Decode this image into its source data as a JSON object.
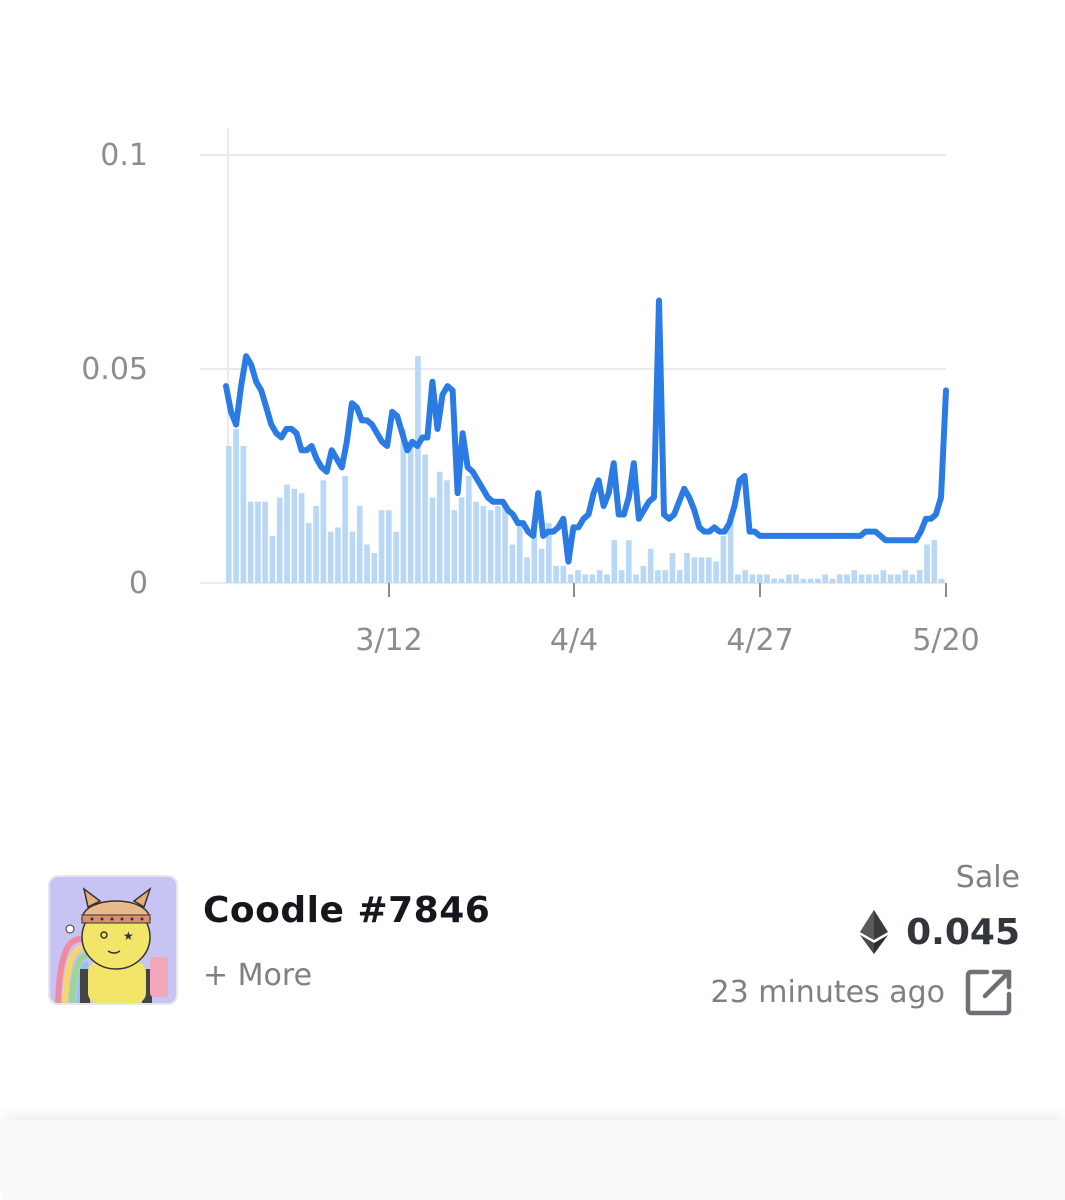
{
  "chart_data": {
    "type": "bar+line",
    "ylim": [
      0,
      0.1
    ],
    "y_ticks": [
      {
        "value": 0.1,
        "label": "0.1"
      },
      {
        "value": 0.05,
        "label": "0.05"
      },
      {
        "value": 0,
        "label": "0"
      }
    ],
    "x_ticks": [
      "3/12",
      "4/4",
      "4/27",
      "5/20"
    ],
    "grid": true,
    "colors": {
      "line": "#2b7be4",
      "bars": "#b9d8f5",
      "grid": "#e8eaee",
      "axis_text": "#8a8d93"
    },
    "series": [
      {
        "kind": "line",
        "points": [
          [
            0,
            0.046
          ],
          [
            1,
            0.04
          ],
          [
            2,
            0.037
          ],
          [
            3,
            0.046
          ],
          [
            4,
            0.053
          ],
          [
            5,
            0.051
          ],
          [
            6,
            0.047
          ],
          [
            7,
            0.045
          ],
          [
            8,
            0.041
          ],
          [
            9,
            0.037
          ],
          [
            10,
            0.035
          ],
          [
            11,
            0.034
          ],
          [
            12,
            0.036
          ],
          [
            13,
            0.036
          ],
          [
            14,
            0.035
          ],
          [
            15,
            0.031
          ],
          [
            16,
            0.031
          ],
          [
            17,
            0.032
          ],
          [
            18,
            0.029
          ],
          [
            19,
            0.027
          ],
          [
            20,
            0.026
          ],
          [
            21,
            0.031
          ],
          [
            22,
            0.029
          ],
          [
            23,
            0.027
          ],
          [
            24,
            0.033
          ],
          [
            25,
            0.042
          ],
          [
            26,
            0.041
          ],
          [
            27,
            0.038
          ],
          [
            28,
            0.038
          ],
          [
            29,
            0.037
          ],
          [
            30,
            0.035
          ],
          [
            31,
            0.033
          ],
          [
            32,
            0.032
          ],
          [
            33,
            0.04
          ],
          [
            34,
            0.039
          ],
          [
            35,
            0.035
          ],
          [
            36,
            0.031
          ],
          [
            37,
            0.033
          ],
          [
            38,
            0.032
          ],
          [
            39,
            0.034
          ],
          [
            40,
            0.034
          ],
          [
            41,
            0.047
          ],
          [
            42,
            0.036
          ],
          [
            43,
            0.044
          ],
          [
            44,
            0.046
          ],
          [
            45,
            0.045
          ],
          [
            46,
            0.021
          ],
          [
            47,
            0.035
          ],
          [
            48,
            0.027
          ],
          [
            49,
            0.026
          ],
          [
            50,
            0.024
          ],
          [
            51,
            0.022
          ],
          [
            52,
            0.02
          ],
          [
            53,
            0.019
          ],
          [
            54,
            0.019
          ],
          [
            55,
            0.019
          ],
          [
            56,
            0.017
          ],
          [
            57,
            0.016
          ],
          [
            58,
            0.014
          ],
          [
            59,
            0.014
          ],
          [
            60,
            0.012
          ],
          [
            61,
            0.011
          ],
          [
            62,
            0.021
          ],
          [
            63,
            0.011
          ],
          [
            64,
            0.012
          ],
          [
            65,
            0.012
          ],
          [
            66,
            0.013
          ],
          [
            67,
            0.015
          ],
          [
            68,
            0.005
          ],
          [
            69,
            0.013
          ],
          [
            70,
            0.013
          ],
          [
            71,
            0.015
          ],
          [
            72,
            0.016
          ],
          [
            73,
            0.021
          ],
          [
            74,
            0.024
          ],
          [
            75,
            0.018
          ],
          [
            76,
            0.021
          ],
          [
            77,
            0.028
          ],
          [
            78,
            0.016
          ],
          [
            79,
            0.016
          ],
          [
            80,
            0.02
          ],
          [
            81,
            0.028
          ],
          [
            82,
            0.015
          ],
          [
            83,
            0.017
          ],
          [
            84,
            0.019
          ],
          [
            85,
            0.02
          ],
          [
            86,
            0.066
          ],
          [
            87,
            0.016
          ],
          [
            88,
            0.015
          ],
          [
            89,
            0.016
          ],
          [
            90,
            0.019
          ],
          [
            91,
            0.022
          ],
          [
            92,
            0.02
          ],
          [
            93,
            0.017
          ],
          [
            94,
            0.013
          ],
          [
            95,
            0.012
          ],
          [
            96,
            0.012
          ],
          [
            97,
            0.013
          ],
          [
            98,
            0.012
          ],
          [
            99,
            0.012
          ],
          [
            100,
            0.014
          ],
          [
            101,
            0.018
          ],
          [
            102,
            0.024
          ],
          [
            103,
            0.025
          ],
          [
            104,
            0.012
          ],
          [
            105,
            0.012
          ],
          [
            106,
            0.011
          ],
          [
            107,
            0.011
          ],
          [
            108,
            0.011
          ],
          [
            109,
            0.011
          ],
          [
            110,
            0.011
          ],
          [
            111,
            0.011
          ],
          [
            112,
            0.011
          ],
          [
            113,
            0.011
          ],
          [
            114,
            0.011
          ],
          [
            115,
            0.011
          ],
          [
            116,
            0.011
          ],
          [
            117,
            0.011
          ],
          [
            118,
            0.011
          ],
          [
            119,
            0.011
          ],
          [
            120,
            0.011
          ],
          [
            121,
            0.011
          ],
          [
            122,
            0.011
          ],
          [
            123,
            0.011
          ],
          [
            124,
            0.011
          ],
          [
            125,
            0.011
          ],
          [
            126,
            0.011
          ],
          [
            127,
            0.012
          ],
          [
            128,
            0.012
          ],
          [
            129,
            0.012
          ],
          [
            130,
            0.011
          ],
          [
            131,
            0.01
          ],
          [
            132,
            0.01
          ],
          [
            133,
            0.01
          ],
          [
            134,
            0.01
          ],
          [
            135,
            0.01
          ],
          [
            136,
            0.01
          ],
          [
            137,
            0.01
          ],
          [
            138,
            0.012
          ],
          [
            139,
            0.015
          ],
          [
            140,
            0.015
          ],
          [
            141,
            0.016
          ],
          [
            142,
            0.02
          ],
          [
            143,
            0.045
          ]
        ]
      },
      {
        "kind": "bar",
        "values": [
          0.032,
          0.036,
          0.032,
          0.019,
          0.019,
          0.019,
          0.011,
          0.02,
          0.023,
          0.022,
          0.021,
          0.014,
          0.018,
          0.024,
          0.012,
          0.013,
          0.025,
          0.012,
          0.018,
          0.009,
          0.007,
          0.017,
          0.017,
          0.012,
          0.036,
          0.033,
          0.053,
          0.03,
          0.02,
          0.026,
          0.024,
          0.017,
          0.02,
          0.025,
          0.019,
          0.018,
          0.017,
          0.018,
          0.018,
          0.009,
          0.014,
          0.006,
          0.013,
          0.008,
          0.014,
          0.004,
          0.004,
          0.002,
          0.003,
          0.002,
          0.002,
          0.003,
          0.002,
          0.01,
          0.003,
          0.01,
          0.002,
          0.004,
          0.008,
          0.003,
          0.003,
          0.007,
          0.003,
          0.007,
          0.006,
          0.006,
          0.006,
          0.005,
          0.011,
          0.016,
          0.002,
          0.003,
          0.002,
          0.002,
          0.002,
          0.001,
          0.001,
          0.002,
          0.002,
          0.001,
          0.001,
          0.001,
          0.002,
          0.001,
          0.002,
          0.002,
          0.003,
          0.002,
          0.002,
          0.002,
          0.003,
          0.002,
          0.002,
          0.003,
          0.002,
          0.003,
          0.009,
          0.01,
          0.001
        ]
      }
    ]
  },
  "sale": {
    "item_name": "Coodle #7846",
    "more_label": "+ More",
    "event_label": "Sale",
    "price": "0.045",
    "currency_icon": "ethereum-icon",
    "time_ago": "23 minutes ago",
    "link_icon": "external-link-icon"
  }
}
